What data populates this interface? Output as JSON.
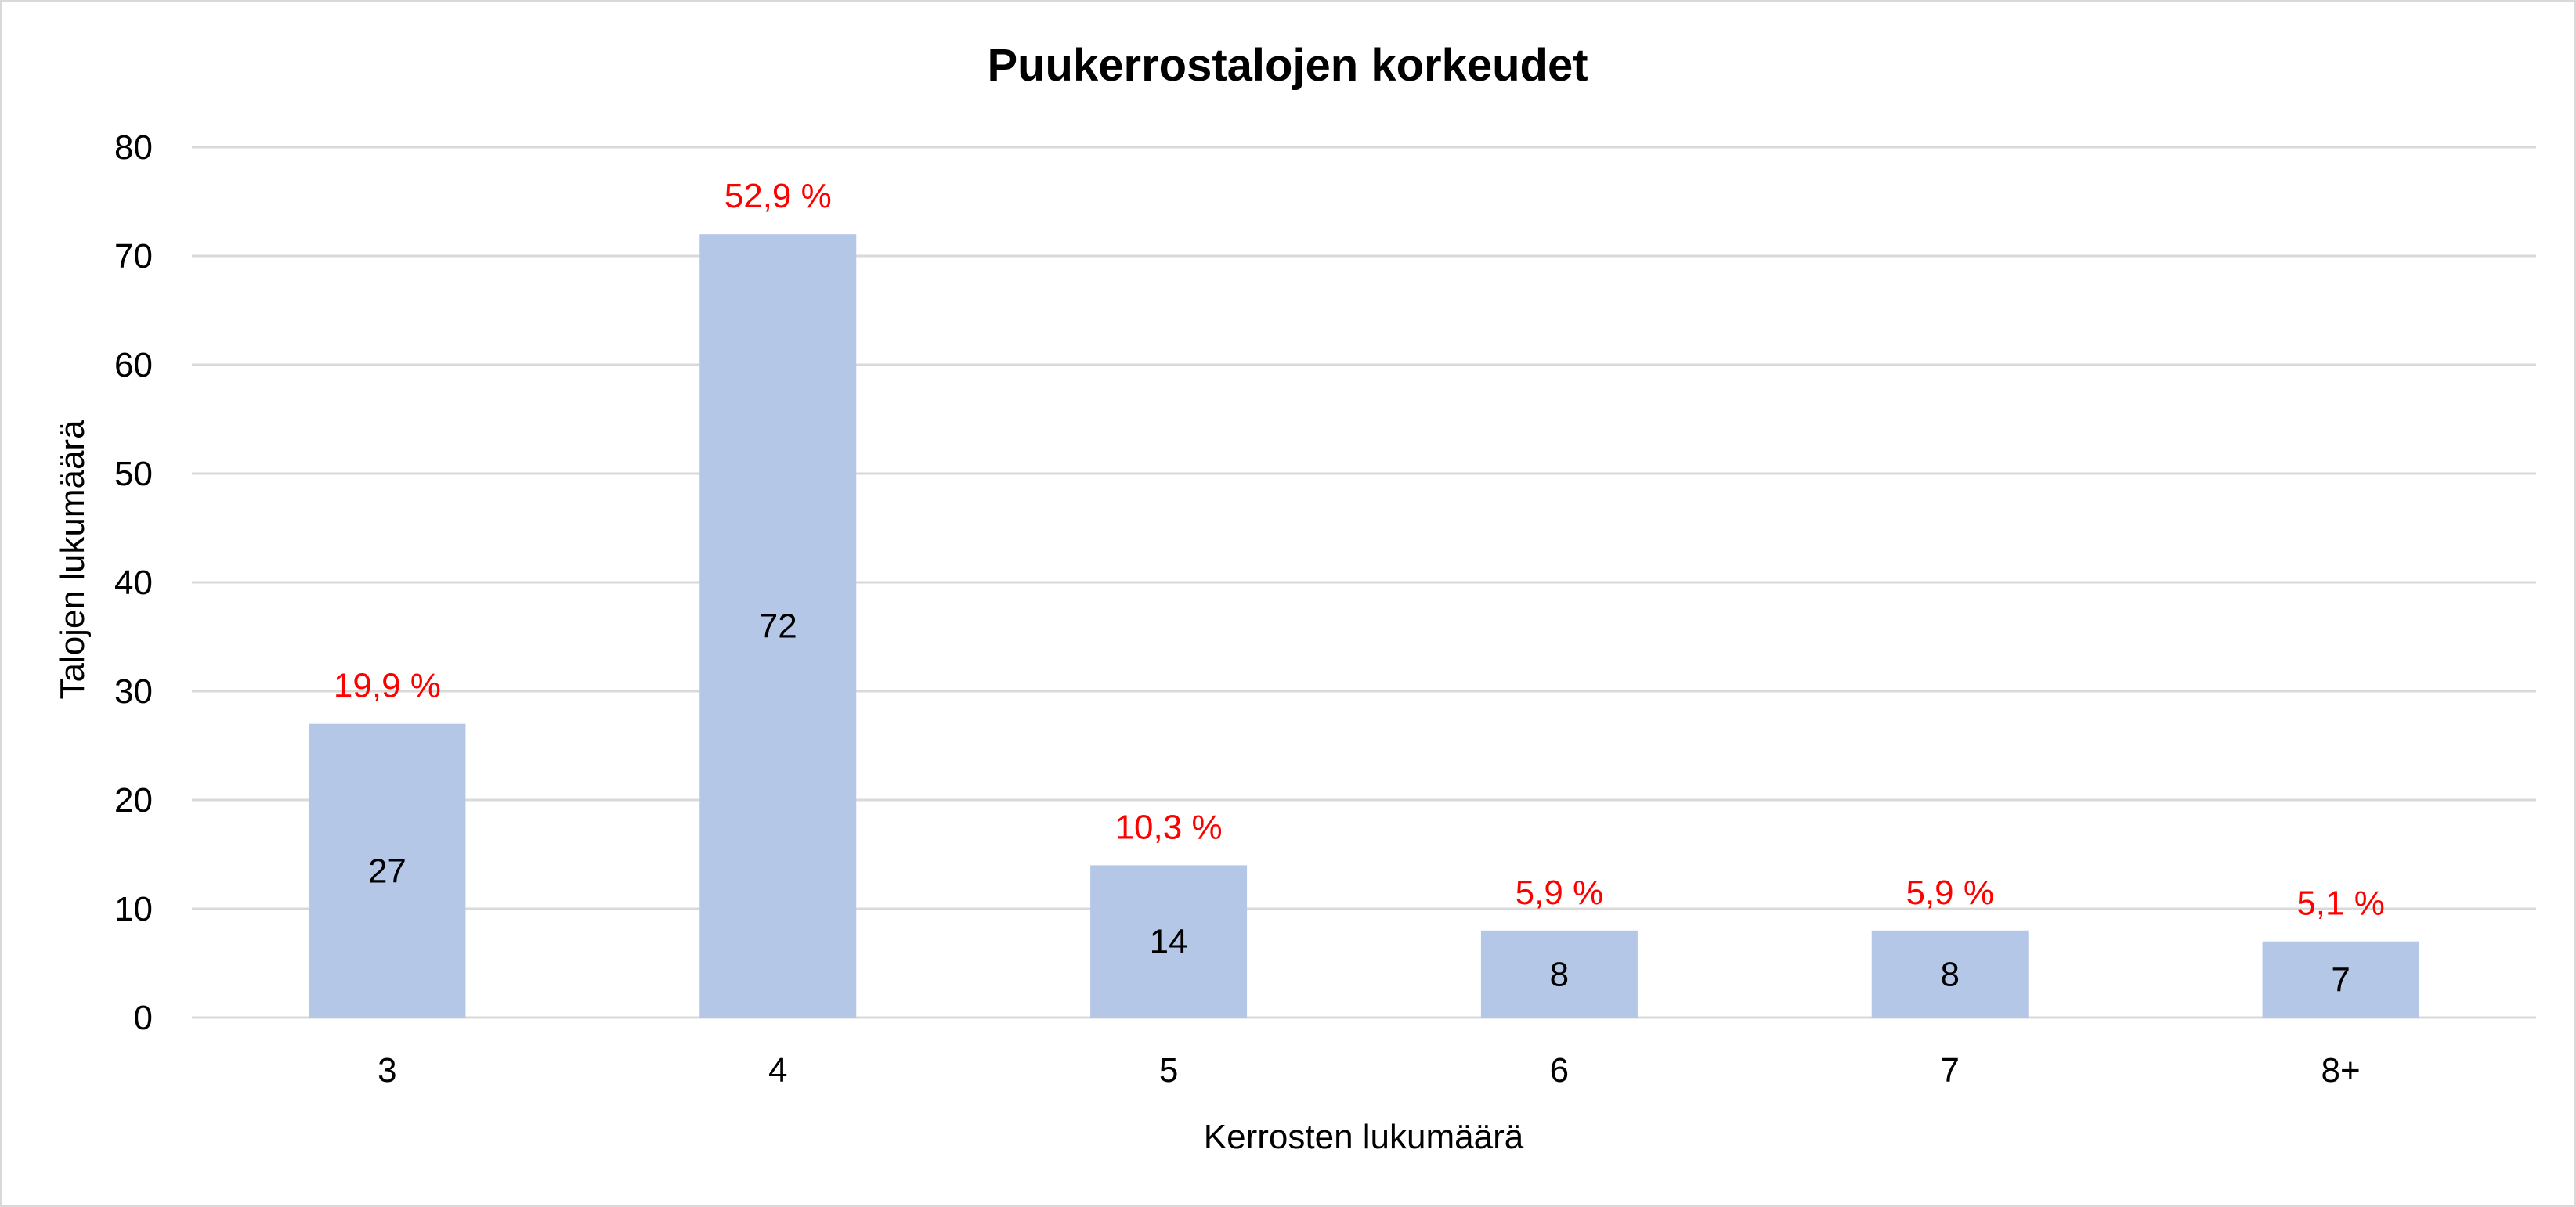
{
  "chart_data": {
    "type": "bar",
    "title": "Puukerrostalojen korkeudet",
    "xlabel": "Kerrosten lukumäärä",
    "ylabel": "Talojen lukumäärä",
    "categories": [
      "3",
      "4",
      "5",
      "6",
      "7",
      "8+"
    ],
    "values": [
      27,
      72,
      14,
      8,
      8,
      7
    ],
    "value_labels": [
      "27",
      "72",
      "14",
      "8",
      "8",
      "7"
    ],
    "percent_labels": [
      "19,9 %",
      "52,9 %",
      "10,3 %",
      "5,9 %",
      "5,9 %",
      "5,1 %"
    ],
    "ylim": [
      0,
      80
    ],
    "yticks": [
      0,
      10,
      20,
      30,
      40,
      50,
      60,
      70,
      80
    ],
    "grid": true,
    "legend": "none",
    "colors": {
      "bar": "#b4c7e7",
      "gridline": "#d9d9d9",
      "percent_label": "#ff0000",
      "frame": "#d9d9d9"
    }
  }
}
